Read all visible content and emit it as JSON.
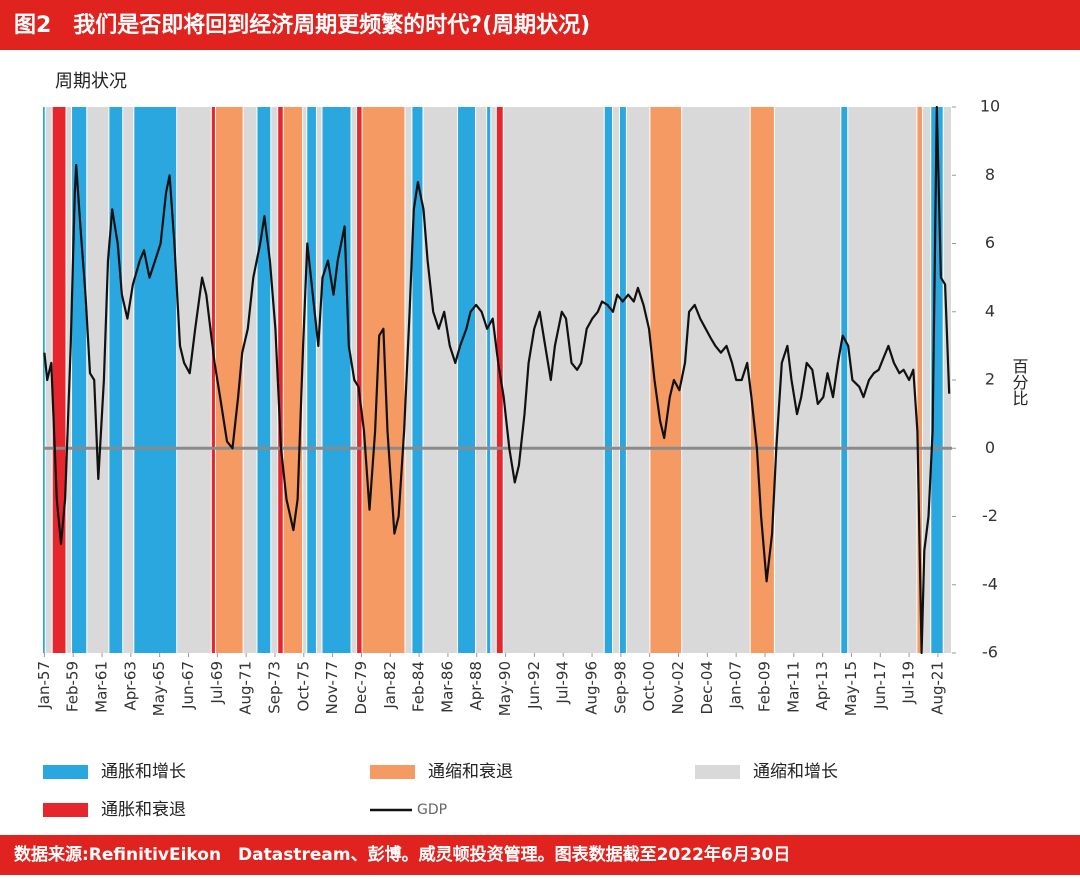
{
  "header": {
    "title": "图2　我们是否即将回到经济周期更频繁的时代?(周期状况)"
  },
  "chart_data": {
    "type": "line",
    "title": "周期状况",
    "y_label": "百分比",
    "xlim": [
      1956.9,
      2022.6
    ],
    "ylim": [
      -6,
      10
    ],
    "yticks": [
      10,
      8,
      6,
      4,
      2,
      0,
      -2,
      -4,
      -6
    ],
    "zero_line": true,
    "xticks": [
      {
        "value": 1957,
        "label": "Jan-57"
      },
      {
        "value": 1959.083,
        "label": "Feb-59"
      },
      {
        "value": 1961.167,
        "label": "Mar-61"
      },
      {
        "value": 1963.25,
        "label": "Apr-63"
      },
      {
        "value": 1965.333,
        "label": "May-65"
      },
      {
        "value": 1967.417,
        "label": "Jun-67"
      },
      {
        "value": 1969.5,
        "label": "Jul-69"
      },
      {
        "value": 1971.583,
        "label": "Aug-71"
      },
      {
        "value": 1973.667,
        "label": "Sep-73"
      },
      {
        "value": 1975.75,
        "label": "Oct-75"
      },
      {
        "value": 1977.833,
        "label": "Nov-77"
      },
      {
        "value": 1979.917,
        "label": "Dec-79"
      },
      {
        "value": 1982,
        "label": "Jan-82"
      },
      {
        "value": 1984.083,
        "label": "Feb-84"
      },
      {
        "value": 1986.167,
        "label": "Mar-86"
      },
      {
        "value": 1988.25,
        "label": "Apr-88"
      },
      {
        "value": 1990.333,
        "label": "May-90"
      },
      {
        "value": 1992.417,
        "label": "Jun-92"
      },
      {
        "value": 1994.5,
        "label": "Jul-94"
      },
      {
        "value": 1996.583,
        "label": "Aug-96"
      },
      {
        "value": 1998.667,
        "label": "Sep-98"
      },
      {
        "value": 2000.75,
        "label": "Oct-00"
      },
      {
        "value": 2002.833,
        "label": "Nov-02"
      },
      {
        "value": 2004.917,
        "label": "Dec-04"
      },
      {
        "value": 2007,
        "label": "Jan-07"
      },
      {
        "value": 2009.083,
        "label": "Feb-09"
      },
      {
        "value": 2011.167,
        "label": "Mar-11"
      },
      {
        "value": 2013.25,
        "label": "Apr-13"
      },
      {
        "value": 2015.333,
        "label": "May-15"
      },
      {
        "value": 2017.417,
        "label": "Jun-17"
      },
      {
        "value": 2019.5,
        "label": "Jul-19"
      },
      {
        "value": 2021.583,
        "label": "Aug-21"
      }
    ],
    "regimes": [
      {
        "name": "通胀和增长",
        "color": "#2aa7df",
        "spans": [
          [
            1956.9,
            1957.1
          ],
          [
            1959.0,
            1960.1
          ],
          [
            1961.7,
            1962.7
          ],
          [
            1963.5,
            1966.6
          ],
          [
            1972.4,
            1973.4
          ],
          [
            1976.0,
            1976.7
          ],
          [
            1977.1,
            1979.2
          ],
          [
            1983.6,
            1984.4
          ],
          [
            1986.9,
            1988.2
          ],
          [
            1989.0,
            1989.3
          ],
          [
            1997.5,
            1998.1
          ],
          [
            1998.6,
            1999.1
          ],
          [
            2014.6,
            2015.1
          ],
          [
            2021.1,
            2022.0
          ]
        ]
      },
      {
        "name": "通缩和衰退",
        "color": "#f59a62",
        "spans": [
          [
            1969.4,
            1971.4
          ],
          [
            1974.3,
            1975.7
          ],
          [
            1980.0,
            1983.1
          ],
          [
            2000.8,
            2003.1
          ],
          [
            2008.05,
            2009.8
          ],
          [
            2020.1,
            2020.5
          ]
        ]
      },
      {
        "name": "通缩和增长",
        "color": "#d9d9d9",
        "spans": [
          [
            1957.1,
            1957.6
          ],
          [
            1958.6,
            1959.0
          ],
          [
            1960.1,
            1961.7
          ],
          [
            1962.7,
            1963.5
          ],
          [
            1966.6,
            1969.1
          ],
          [
            1971.4,
            1972.4
          ],
          [
            1973.4,
            1973.9
          ],
          [
            1975.7,
            1976.0
          ],
          [
            1976.7,
            1977.1
          ],
          [
            1979.2,
            1979.6
          ],
          [
            1983.1,
            1983.6
          ],
          [
            1984.4,
            1986.9
          ],
          [
            1988.2,
            1989.0
          ],
          [
            1989.3,
            1989.7
          ],
          [
            1990.2,
            1997.5
          ],
          [
            1998.1,
            1998.6
          ],
          [
            1999.1,
            2000.8
          ],
          [
            2003.1,
            2008.05
          ],
          [
            2009.8,
            2014.6
          ],
          [
            2015.1,
            2020.1
          ],
          [
            2020.5,
            2021.1
          ],
          [
            2022.0,
            2022.6
          ]
        ]
      },
      {
        "name": "通胀和衰退",
        "color": "#e5262c",
        "spans": [
          [
            1957.6,
            1958.6
          ],
          [
            1969.1,
            1969.4
          ],
          [
            1973.9,
            1974.3
          ],
          [
            1979.6,
            1980.0
          ],
          [
            1989.7,
            1990.2
          ]
        ]
      }
    ],
    "series": [
      {
        "name": "GDP",
        "color": "#111111",
        "x": [
          1957.0,
          1957.2,
          1957.5,
          1957.9,
          1958.2,
          1958.5,
          1958.9,
          1959.2,
          1959.3,
          1959.6,
          1959.97,
          1960.3,
          1960.6,
          1960.9,
          1961.3,
          1961.6,
          1961.9,
          1962.3,
          1962.6,
          1963.0,
          1963.4,
          1963.9,
          1964.2,
          1964.6,
          1965.0,
          1965.4,
          1965.8,
          1966.05,
          1966.4,
          1966.8,
          1967.1,
          1967.5,
          1967.9,
          1968.4,
          1968.7,
          1969.0,
          1969.3,
          1969.7,
          1970.2,
          1970.6,
          1971.0,
          1971.3,
          1971.7,
          1972.1,
          1972.6,
          1972.9,
          1973.3,
          1973.7,
          1974.1,
          1974.5,
          1975.0,
          1975.3,
          1975.7,
          1976.0,
          1976.4,
          1976.8,
          1977.1,
          1977.5,
          1977.9,
          1978.2,
          1978.7,
          1979.0,
          1979.4,
          1979.7,
          1980.1,
          1980.5,
          1980.9,
          1981.2,
          1981.5,
          1981.8,
          1982.3,
          1982.6,
          1983.0,
          1983.4,
          1983.7,
          1984.0,
          1984.4,
          1984.7,
          1985.1,
          1985.5,
          1985.9,
          1986.3,
          1986.7,
          1987.05,
          1987.5,
          1987.8,
          1988.2,
          1988.6,
          1989.0,
          1989.4,
          1989.8,
          1990.2,
          1990.6,
          1991.0,
          1991.3,
          1991.7,
          1992.0,
          1992.4,
          1992.8,
          1993.2,
          1993.6,
          1993.9,
          1994.4,
          1994.7,
          1995.1,
          1995.5,
          1995.8,
          1996.2,
          1996.6,
          1997.0,
          1997.3,
          1997.7,
          1998.1,
          1998.4,
          1998.8,
          1999.2,
          1999.6,
          1999.9,
          2000.3,
          2000.7,
          2001.1,
          2001.5,
          2001.8,
          2002.2,
          2002.5,
          2002.9,
          2003.3,
          2003.6,
          2004.0,
          2004.4,
          2004.8,
          2005.2,
          2005.5,
          2005.9,
          2006.3,
          2006.7,
          2007.0,
          2007.4,
          2007.8,
          2008.1,
          2008.5,
          2008.8,
          2009.2,
          2009.6,
          2009.9,
          2010.3,
          2010.7,
          2011.0,
          2011.4,
          2011.7,
          2012.1,
          2012.5,
          2012.9,
          2013.3,
          2013.6,
          2014.0,
          2014.35,
          2014.7,
          2015.1,
          2015.4,
          2015.9,
          2016.2,
          2016.6,
          2016.95,
          2017.3,
          2017.7,
          2018.0,
          2018.4,
          2018.8,
          2019.1,
          2019.5,
          2019.8,
          2020.1,
          2020.4,
          2020.6,
          2020.9,
          2021.2,
          2021.5,
          2021.8,
          2022.1,
          2022.4
        ],
        "values": [
          2.8,
          2.0,
          2.5,
          -1.5,
          -2.8,
          -1.5,
          3,
          7.5,
          8.3,
          6.5,
          4.5,
          2.2,
          2.0,
          -0.9,
          2.0,
          5.5,
          7.0,
          6.0,
          4.5,
          3.8,
          4.8,
          5.5,
          5.8,
          5.0,
          5.5,
          6.0,
          7.5,
          8.0,
          6.0,
          3.0,
          2.5,
          2.2,
          3.5,
          5.0,
          4.5,
          3.5,
          2.5,
          1.5,
          0.2,
          0.0,
          1.5,
          2.8,
          3.5,
          5.0,
          6.0,
          6.8,
          5.5,
          3.5,
          0.0,
          -1.5,
          -2.4,
          -1.5,
          3.0,
          6.0,
          4.5,
          3.0,
          5.0,
          5.5,
          4.5,
          5.5,
          6.5,
          3.0,
          2.0,
          1.8,
          0.5,
          -1.8,
          0.5,
          3.3,
          3.5,
          0.5,
          -2.5,
          -2.0,
          0.5,
          4.0,
          7.0,
          7.8,
          7.0,
          5.5,
          4.0,
          3.5,
          4.0,
          3.0,
          2.5,
          3.0,
          3.5,
          4.0,
          4.2,
          4.0,
          3.5,
          3.8,
          2.5,
          1.5,
          0.0,
          -1.0,
          -0.5,
          1.0,
          2.5,
          3.5,
          4.0,
          3.0,
          2.0,
          3.0,
          4.0,
          3.8,
          2.5,
          2.3,
          2.5,
          3.5,
          3.8,
          4.0,
          4.3,
          4.2,
          4.0,
          4.5,
          4.3,
          4.5,
          4.3,
          4.7,
          4.2,
          3.5,
          2.0,
          0.8,
          0.3,
          1.5,
          2.0,
          1.7,
          2.5,
          4.0,
          4.2,
          3.8,
          3.5,
          3.2,
          3.0,
          2.8,
          3.0,
          2.5,
          2.0,
          2.0,
          2.5,
          1.5,
          0.0,
          -2.0,
          -3.9,
          -2.5,
          0.0,
          2.5,
          3.0,
          2.0,
          1.0,
          1.5,
          2.5,
          2.3,
          1.3,
          1.5,
          2.2,
          1.5,
          2.5,
          3.3,
          3.0,
          2.0,
          1.8,
          1.5,
          2.0,
          2.2,
          2.3,
          2.7,
          3.0,
          2.5,
          2.2,
          2.3,
          2.0,
          2.3,
          0.5,
          -6,
          -3.0,
          -2.0,
          0.5,
          10,
          5.0,
          4.8,
          1.6
        ]
      }
    ]
  },
  "footer": {
    "source": "数据来源:RefinitivEikon　Datastream、彭博。威灵顿投资管理。图表数据截至2022年6月30日"
  }
}
